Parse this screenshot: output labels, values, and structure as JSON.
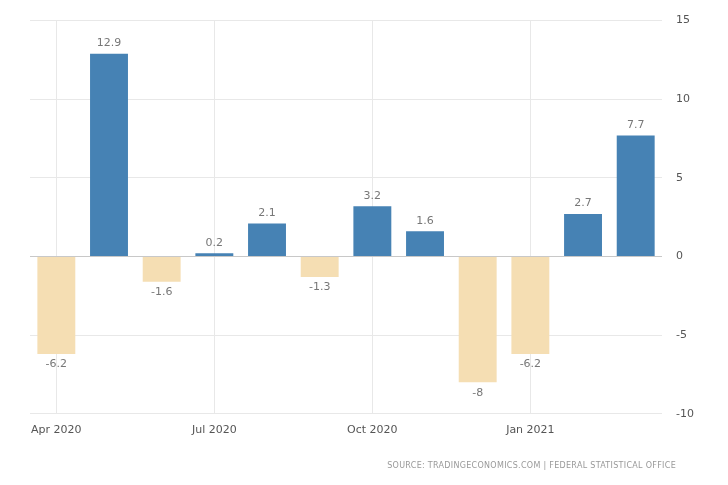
{
  "chart_data": {
    "type": "bar",
    "categories": [
      "Apr 2020",
      null,
      null,
      "Jul 2020",
      null,
      null,
      "Oct 2020",
      null,
      null,
      "Jan 2021",
      null,
      null
    ],
    "values": [
      -6.2,
      12.9,
      -1.6,
      0.2,
      2.1,
      -1.3,
      3.2,
      1.6,
      -8,
      -6.2,
      2.7,
      7.7
    ],
    "colors": [
      "#f5deb3",
      "#4682b4",
      "#f5deb3",
      "#4682b4",
      "#4682b4",
      "#f5deb3",
      "#4682b4",
      "#4682b4",
      "#f5deb3",
      "#f5deb3",
      "#4682b4",
      "#4682b4"
    ],
    "ylim": [
      -10,
      15
    ],
    "yticks": [
      -10,
      -5,
      0,
      5,
      10,
      15
    ],
    "grid": true,
    "data_labels": true,
    "annotations": [
      "SOURCE: TRADINGECONOMICS.COM | FEDERAL STATISTICAL OFFICE"
    ]
  }
}
